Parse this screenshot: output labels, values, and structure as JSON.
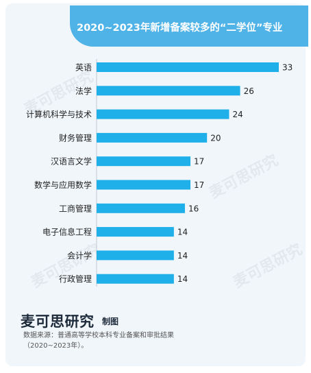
{
  "title": "2020~2023年新增备案较多的“二学位”专业",
  "chart_data": {
    "type": "bar",
    "orientation": "horizontal",
    "categories": [
      "英语",
      "法学",
      "计算机科学与技术",
      "财务管理",
      "汉语言文学",
      "数学与应用数学",
      "工商管理",
      "电子信息工程",
      "会计学",
      "行政管理"
    ],
    "values": [
      33,
      26,
      24,
      20,
      17,
      17,
      16,
      14,
      14,
      14
    ],
    "xlim": [
      0,
      33
    ],
    "bar_color": "#1fb0ea",
    "grid": false,
    "legend": "none"
  },
  "footer": {
    "brand": "麦可思研究",
    "brand_suffix": "制图",
    "source_line1": "数据来源：普通高等学校本科专业备案和审批结果",
    "source_line2": "（2020~2023年）。"
  },
  "watermark_text": "麦可思研究"
}
